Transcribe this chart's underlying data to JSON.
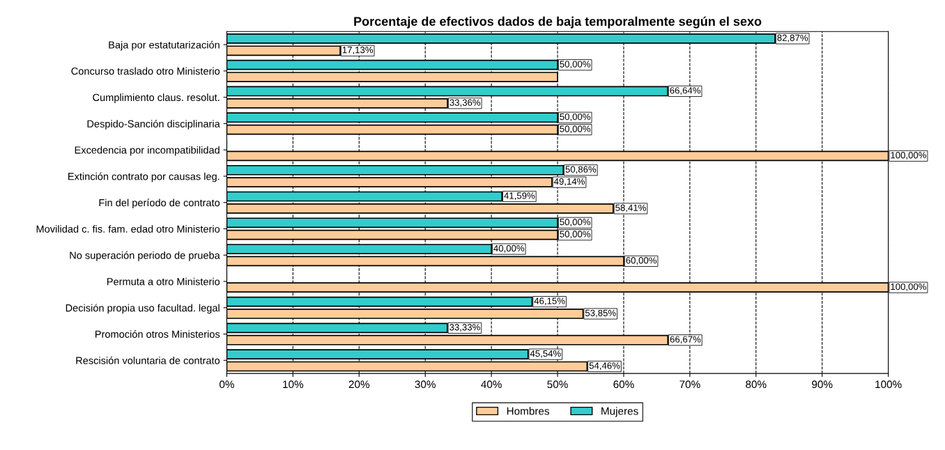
{
  "chart_data": {
    "type": "bar",
    "orientation": "horizontal",
    "title": "Porcentaje de efectivos dados de baja temporalmente según el sexo",
    "categories": [
      "Baja por estatutarización",
      "Concurso traslado otro Ministerio",
      "Cumplimiento claus. resolut.",
      "Despido-Sanción disciplinaria",
      "Excedencia por incompatibilidad",
      "Extinción contrato por causas leg.",
      "Fin del período de contrato",
      "Movilidad c. fis. fam. edad otro Ministerio",
      "No superación periodo de prueba",
      "Permuta a otro Ministerio",
      "Decisión propia uso facultad. legal",
      "Promoción otros Ministerios",
      "Rescisión voluntaria de contrato"
    ],
    "series": [
      {
        "name": "Hombres",
        "color": "#ffcc99",
        "values": [
          17.13,
          50.0,
          33.36,
          50.0,
          100.0,
          49.14,
          58.41,
          50.0,
          60.0,
          100.0,
          53.85,
          66.67,
          54.46
        ],
        "value_labels": [
          "17,13%",
          null,
          "33,36%",
          "50,00%",
          "100,00%",
          "49,14%",
          "58,41%",
          "50,00%",
          "60,00%",
          "100,00%",
          "53,85%",
          "66,67%",
          "54,46%"
        ]
      },
      {
        "name": "Mujeres",
        "color": "#33cccc",
        "values": [
          82.87,
          50.0,
          66.64,
          50.0,
          0,
          50.86,
          41.59,
          50.0,
          40.0,
          0,
          46.15,
          33.33,
          45.54
        ],
        "value_labels": [
          "82,87%",
          "50,00%",
          "66,64%",
          "50,00%",
          null,
          "50,86%",
          "41,59%",
          "50,00%",
          "40,00%",
          null,
          "46,15%",
          "33,33%",
          "45,54%"
        ]
      }
    ],
    "xlim": [
      0,
      100
    ],
    "xticks": [
      {
        "value": 0,
        "label": "0%"
      },
      {
        "value": 10,
        "label": "10%"
      },
      {
        "value": 20,
        "label": "20%"
      },
      {
        "value": 30,
        "label": "30%"
      },
      {
        "value": 40,
        "label": "40%"
      },
      {
        "value": 50,
        "label": "50%"
      },
      {
        "value": 60,
        "label": "60%"
      },
      {
        "value": 70,
        "label": "70%"
      },
      {
        "value": 80,
        "label": "80%"
      },
      {
        "value": 90,
        "label": "90%"
      },
      {
        "value": 100,
        "label": "100%"
      }
    ],
    "grid": "x",
    "legend": "bottom"
  }
}
